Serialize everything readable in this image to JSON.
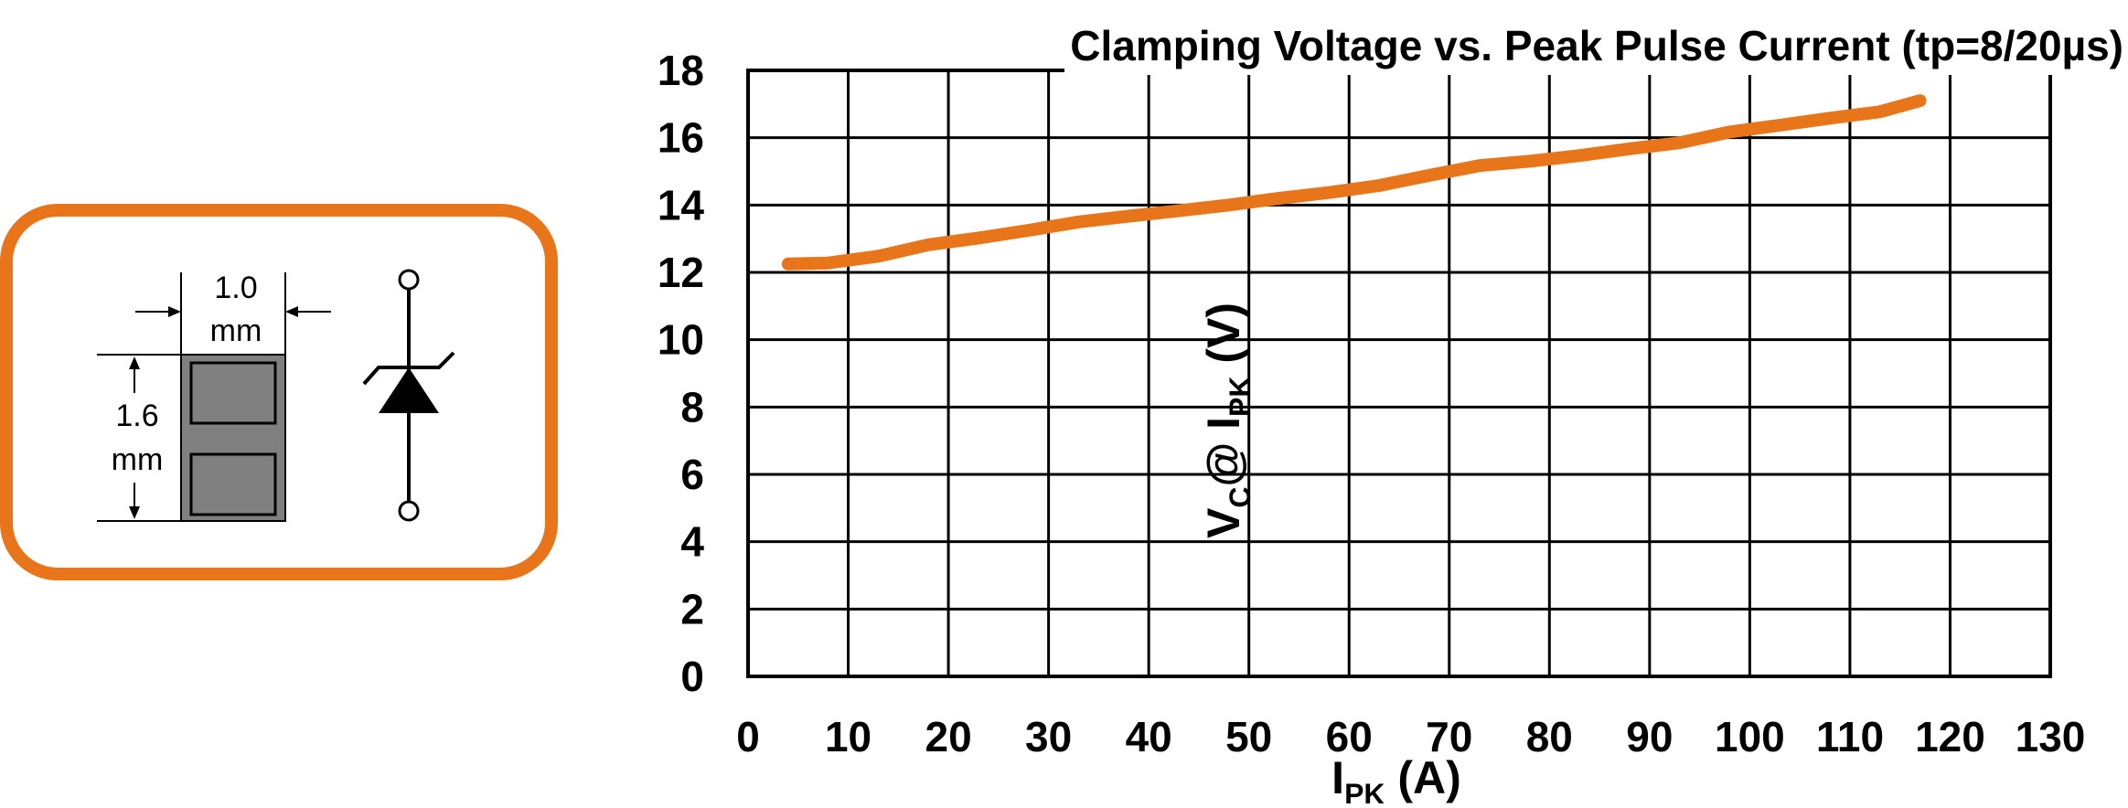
{
  "package": {
    "width_dim": [
      "1.0",
      "mm"
    ],
    "height_dim": [
      "1.6",
      "mm"
    ],
    "border_color": "#E8751A",
    "pad_color": "#808080",
    "symbol": "tvs-diode-icon"
  },
  "chart_data": {
    "type": "line",
    "title": "Clamping Voltage vs. Peak Pulse Current (tp=8/20µs)",
    "xlabel": {
      "main": "I",
      "sub": "PK",
      "rest": " (A)"
    },
    "ylabel": {
      "a": "V",
      "a_sub": "C",
      "b": "@ I",
      "b_sub": "PK",
      "c": " (V)"
    },
    "xlim": [
      0,
      130
    ],
    "ylim": [
      0,
      18
    ],
    "xticks": [
      0,
      10,
      20,
      30,
      40,
      50,
      60,
      70,
      80,
      90,
      100,
      110,
      120,
      130
    ],
    "yticks": [
      0,
      2,
      4,
      6,
      8,
      10,
      12,
      14,
      16,
      18
    ],
    "grid": true,
    "line_color": "#E8751A",
    "series": [
      {
        "x": [
          4,
          8,
          13,
          18,
          23,
          28,
          33,
          38,
          43,
          48,
          53,
          58,
          63,
          68,
          73,
          78,
          83,
          88,
          93,
          98,
          103,
          108,
          113,
          117
        ],
        "y": [
          12.25,
          12.28,
          12.48,
          12.82,
          13.02,
          13.25,
          13.5,
          13.67,
          13.83,
          14.0,
          14.2,
          14.37,
          14.58,
          14.88,
          15.17,
          15.3,
          15.47,
          15.67,
          15.85,
          16.17,
          16.37,
          16.58,
          16.77,
          17.1
        ]
      }
    ]
  }
}
